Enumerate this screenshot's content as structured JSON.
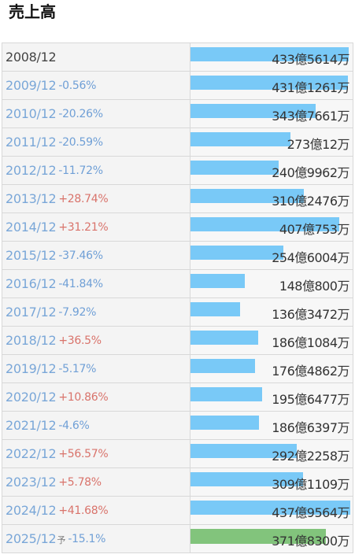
{
  "title": "売上高",
  "colors": {
    "bar": "#79c9f7",
    "forecast_bar": "#82c47c",
    "negative": "#6f9fd6",
    "positive": "#d9736b"
  },
  "rows": [
    {
      "year": "2008/12",
      "change": "",
      "value": "433億5614万",
      "amount_oku": 433.56,
      "forecast": false
    },
    {
      "year": "2009/12",
      "change": "-0.56%",
      "value": "431億1261万",
      "amount_oku": 431.13,
      "forecast": false
    },
    {
      "year": "2010/12",
      "change": "-20.26%",
      "value": "343億7661万",
      "amount_oku": 343.77,
      "forecast": false
    },
    {
      "year": "2011/12",
      "change": "-20.59%",
      "value": "273億12万",
      "amount_oku": 273.0,
      "forecast": false
    },
    {
      "year": "2012/12",
      "change": "-11.72%",
      "value": "240億9962万",
      "amount_oku": 241.0,
      "forecast": false
    },
    {
      "year": "2013/12",
      "change": "+28.74%",
      "value": "310億2476万",
      "amount_oku": 310.25,
      "forecast": false
    },
    {
      "year": "2014/12",
      "change": "+31.21%",
      "value": "407億753万",
      "amount_oku": 407.08,
      "forecast": false
    },
    {
      "year": "2015/12",
      "change": "-37.46%",
      "value": "254億6004万",
      "amount_oku": 254.6,
      "forecast": false
    },
    {
      "year": "2016/12",
      "change": "-41.84%",
      "value": "148億800万",
      "amount_oku": 148.08,
      "forecast": false
    },
    {
      "year": "2017/12",
      "change": "-7.92%",
      "value": "136億3472万",
      "amount_oku": 136.35,
      "forecast": false
    },
    {
      "year": "2018/12",
      "change": "+36.5%",
      "value": "186億1084万",
      "amount_oku": 186.11,
      "forecast": false
    },
    {
      "year": "2019/12",
      "change": "-5.17%",
      "value": "176億4862万",
      "amount_oku": 176.49,
      "forecast": false
    },
    {
      "year": "2020/12",
      "change": "+10.86%",
      "value": "195億6477万",
      "amount_oku": 195.65,
      "forecast": false
    },
    {
      "year": "2021/12",
      "change": "-4.6%",
      "value": "186億6397万",
      "amount_oku": 186.64,
      "forecast": false
    },
    {
      "year": "2022/12",
      "change": "+56.57%",
      "value": "292億2258万",
      "amount_oku": 292.23,
      "forecast": false
    },
    {
      "year": "2023/12",
      "change": "+5.78%",
      "value": "309億1109万",
      "amount_oku": 309.11,
      "forecast": false
    },
    {
      "year": "2024/12",
      "change": "+41.68%",
      "value": "437億9564万",
      "amount_oku": 437.96,
      "forecast": false
    },
    {
      "year": "2025/12",
      "yoso": "予",
      "change": "-15.1%",
      "value": "371億8300万",
      "amount_oku": 371.83,
      "forecast": true
    }
  ]
}
